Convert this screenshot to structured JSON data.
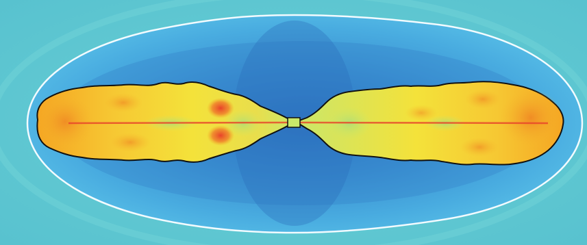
{
  "image": {
    "kind": "jet simulation visualization",
    "colors": {
      "background": "#5fc9d4",
      "cocoon_outer": "#4cb3e3",
      "cocoon_mid": "#3e98d6",
      "cocoon_inner": "#2f7fca",
      "shock_front": "#f2fbff",
      "lobe_low": "#c9e86a",
      "lobe_mid": "#f4e23a",
      "lobe_high": "#f5a623",
      "lobe_peak": "#e8432a",
      "lobe_edge": "#111111"
    }
  }
}
